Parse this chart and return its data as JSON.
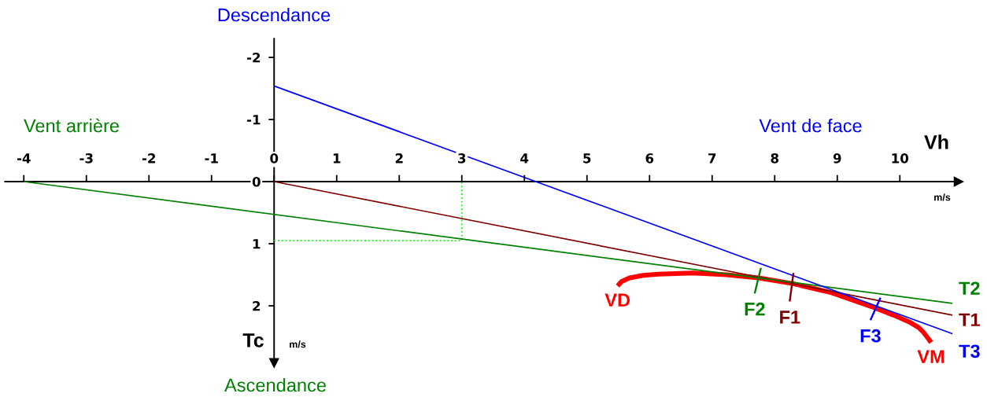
{
  "chart_data": {
    "type": "line",
    "xlabel": "Vh",
    "ylabel": "Tc",
    "line_style": "solid",
    "xlim": [
      -4.3,
      10.94
    ],
    "ylim": [
      2.92,
      -2.3
    ],
    "xticks": [
      -4,
      -3,
      -2,
      -1,
      0,
      1,
      2,
      3,
      4,
      5,
      6,
      7,
      8,
      9,
      10
    ],
    "yticks": [
      -2,
      -1,
      0,
      1,
      2
    ],
    "series": [
      {
        "name": "T1",
        "color": "#800000",
        "x": [
          0,
          10.84
        ],
        "values": [
          0,
          2.15
        ]
      },
      {
        "name": "T2",
        "color": "#008000",
        "x": [
          -4,
          10.84
        ],
        "values": [
          0,
          1.96
        ]
      },
      {
        "name": "T3",
        "color": "#0000ff",
        "x": [
          0,
          10.84
        ],
        "values": [
          -1.54,
          2.45
        ]
      },
      {
        "color": "#ff0000",
        "x": [
          5.49,
          5.55,
          5.68,
          5.9,
          6.14,
          6.69,
          7.23,
          7.74,
          8.28,
          8.91,
          9.54,
          9.9,
          10.17,
          10.3,
          10.38,
          10.44,
          10.5
        ],
        "values": [
          1.68,
          1.61,
          1.55,
          1.51,
          1.49,
          1.47,
          1.5,
          1.55,
          1.64,
          1.79,
          2.01,
          2.15,
          2.27,
          2.35,
          2.43,
          2.51,
          2.59
        ]
      },
      {
        "color": "#00ff00",
        "line_style": "dotted",
        "x": [
          0,
          3,
          3
        ],
        "values": [
          0.95,
          0.95,
          0
        ]
      },
      {
        "name": "F1",
        "color": "#800000",
        "x": [
          8.3,
          8.24
        ],
        "values": [
          1.47,
          1.93
        ]
      },
      {
        "name": "F2",
        "color": "#008000",
        "x": [
          7.78,
          7.68
        ],
        "values": [
          1.39,
          1.8
        ]
      },
      {
        "name": "F3",
        "color": "#0000ff",
        "x": [
          9.69,
          9.53
        ],
        "values": [
          1.87,
          2.23
        ]
      }
    ],
    "annotations": [
      "Descendance",
      "Vent arrière",
      "Vent de face",
      "Ascendance",
      "m/s",
      "m/s",
      {
        "text": "VD",
        "x": 5.49,
        "y": 1.68
      },
      {
        "text": "VM",
        "x": 10.5,
        "y": 2.59
      }
    ]
  }
}
